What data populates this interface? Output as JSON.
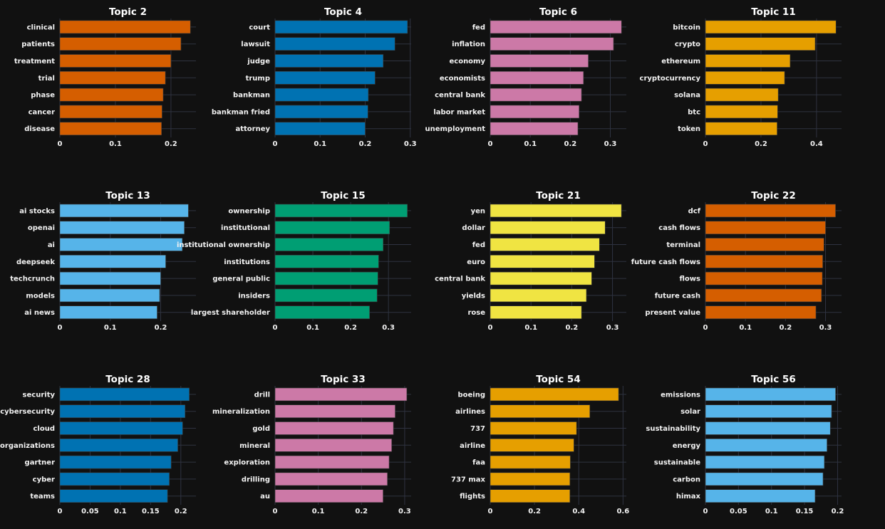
{
  "chart_data": [
    {
      "type": "bar",
      "orientation": "horizontal",
      "title": "Topic 2",
      "color": "#D55E00",
      "categories": [
        "clinical",
        "patients",
        "treatment",
        "trial",
        "phase",
        "cancer",
        "disease"
      ],
      "values": [
        0.235,
        0.218,
        0.2,
        0.19,
        0.186,
        0.184,
        0.183
      ],
      "xlim": [
        0,
        0.245
      ],
      "xticks": [
        0,
        0.1,
        0.2
      ],
      "xtick_labels": [
        "0",
        "0.1",
        "0.2"
      ]
    },
    {
      "type": "bar",
      "orientation": "horizontal",
      "title": "Topic 4",
      "color": "#0072B2",
      "categories": [
        "court",
        "lawsuit",
        "judge",
        "trump",
        "bankman",
        "bankman fried",
        "attorney"
      ],
      "values": [
        0.294,
        0.266,
        0.24,
        0.222,
        0.207,
        0.206,
        0.2
      ],
      "xlim": [
        0,
        0.302
      ],
      "xticks": [
        0,
        0.1,
        0.2,
        0.3
      ],
      "xtick_labels": [
        "0",
        "0.1",
        "0.2",
        "0.3"
      ]
    },
    {
      "type": "bar",
      "orientation": "horizontal",
      "title": "Topic 6",
      "color": "#CC79A7",
      "categories": [
        "fed",
        "inflation",
        "economy",
        "economists",
        "central bank",
        "labor market",
        "unemployment"
      ],
      "values": [
        0.328,
        0.308,
        0.245,
        0.233,
        0.228,
        0.222,
        0.219
      ],
      "xlim": [
        0,
        0.34
      ],
      "xticks": [
        0,
        0.1,
        0.2,
        0.3
      ],
      "xtick_labels": [
        "0",
        "0.1",
        "0.2",
        "0.3"
      ]
    },
    {
      "type": "bar",
      "orientation": "horizontal",
      "title": "Topic 11",
      "color": "#E69F00",
      "categories": [
        "bitcoin",
        "crypto",
        "ethereum",
        "cryptocurrency",
        "solana",
        "btc",
        "token"
      ],
      "values": [
        0.47,
        0.395,
        0.305,
        0.285,
        0.262,
        0.26,
        0.258
      ],
      "xlim": [
        0,
        0.49
      ],
      "xticks": [
        0,
        0.2,
        0.4
      ],
      "xtick_labels": [
        "0",
        "0.2",
        "0.4"
      ]
    },
    {
      "type": "bar",
      "orientation": "horizontal",
      "title": "Topic 13",
      "color": "#56B4E9",
      "categories": [
        "ai stocks",
        "openai",
        "ai",
        "deepseek",
        "techcrunch",
        "models",
        "ai news"
      ],
      "values": [
        0.255,
        0.247,
        0.243,
        0.21,
        0.2,
        0.198,
        0.193
      ],
      "xlim": [
        0,
        0.27
      ],
      "xticks": [
        0,
        0.1,
        0.2
      ],
      "xtick_labels": [
        "0",
        "0.1",
        "0.2"
      ]
    },
    {
      "type": "bar",
      "orientation": "horizontal",
      "title": "Topic 15",
      "color": "#009E73",
      "categories": [
        "ownership",
        "institutional",
        "institutional ownership",
        "institutions",
        "general public",
        "insiders",
        "largest shareholder"
      ],
      "values": [
        0.35,
        0.303,
        0.286,
        0.274,
        0.272,
        0.27,
        0.25
      ],
      "xlim": [
        0,
        0.36
      ],
      "xticks": [
        0,
        0.1,
        0.2,
        0.3
      ],
      "xtick_labels": [
        "0",
        "0.1",
        "0.2",
        "0.3"
      ]
    },
    {
      "type": "bar",
      "orientation": "horizontal",
      "title": "Topic 21",
      "color": "#F0E442",
      "categories": [
        "yen",
        "dollar",
        "fed",
        "euro",
        "central bank",
        "yields",
        "rose"
      ],
      "values": [
        0.322,
        0.282,
        0.268,
        0.256,
        0.249,
        0.236,
        0.224
      ],
      "xlim": [
        0,
        0.334
      ],
      "xticks": [
        0,
        0.1,
        0.2,
        0.3
      ],
      "xtick_labels": [
        "0",
        "0.1",
        "0.2",
        "0.3"
      ]
    },
    {
      "type": "bar",
      "orientation": "horizontal",
      "title": "Topic 22",
      "color": "#D55E00",
      "categories": [
        "dcf",
        "cash flows",
        "terminal",
        "future cash flows",
        "flows",
        "future cash",
        "present value"
      ],
      "values": [
        0.325,
        0.3,
        0.296,
        0.293,
        0.292,
        0.29,
        0.276
      ],
      "xlim": [
        0,
        0.34
      ],
      "xticks": [
        0,
        0.1,
        0.2,
        0.3
      ],
      "xtick_labels": [
        "0",
        "0.1",
        "0.2",
        "0.3"
      ]
    },
    {
      "type": "bar",
      "orientation": "horizontal",
      "title": "Topic 28",
      "color": "#0072B2",
      "categories": [
        "security",
        "cybersecurity",
        "cloud",
        "organizations",
        "gartner",
        "cyber",
        "teams"
      ],
      "values": [
        0.214,
        0.207,
        0.203,
        0.195,
        0.184,
        0.181,
        0.178
      ],
      "xlim": [
        0,
        0.225
      ],
      "xticks": [
        0,
        0.05,
        0.1,
        0.15,
        0.2
      ],
      "xtick_labels": [
        "0",
        "0.05",
        "0.1",
        "0.15",
        "0.2"
      ]
    },
    {
      "type": "bar",
      "orientation": "horizontal",
      "title": "Topic 33",
      "color": "#CC79A7",
      "categories": [
        "drill",
        "mineralization",
        "gold",
        "mineral",
        "exploration",
        "drilling",
        "au"
      ],
      "values": [
        0.305,
        0.278,
        0.274,
        0.27,
        0.264,
        0.26,
        0.25
      ],
      "xlim": [
        0,
        0.315
      ],
      "xticks": [
        0,
        0.1,
        0.2,
        0.3
      ],
      "xtick_labels": [
        "0",
        "0.1",
        "0.2",
        "0.3"
      ]
    },
    {
      "type": "bar",
      "orientation": "horizontal",
      "title": "Topic 54",
      "color": "#E69F00",
      "categories": [
        "boeing",
        "airlines",
        "737",
        "airline",
        "faa",
        "737 max",
        "flights"
      ],
      "values": [
        0.58,
        0.45,
        0.39,
        0.378,
        0.362,
        0.36,
        0.36
      ],
      "xlim": [
        0,
        0.615
      ],
      "xticks": [
        0,
        0.2,
        0.4,
        0.6
      ],
      "xtick_labels": [
        "0",
        "0.2",
        "0.4",
        "0.6"
      ]
    },
    {
      "type": "bar",
      "orientation": "horizontal",
      "title": "Topic 56",
      "color": "#56B4E9",
      "categories": [
        "emissions",
        "solar",
        "sustainability",
        "energy",
        "sustainable",
        "carbon",
        "himax"
      ],
      "values": [
        0.197,
        0.191,
        0.189,
        0.184,
        0.18,
        0.178,
        0.166
      ],
      "xlim": [
        0,
        0.206
      ],
      "xticks": [
        0,
        0.05,
        0.1,
        0.15,
        0.2
      ],
      "xtick_labels": [
        "0",
        "0.05",
        "0.1",
        "0.15",
        "0.2"
      ]
    }
  ]
}
